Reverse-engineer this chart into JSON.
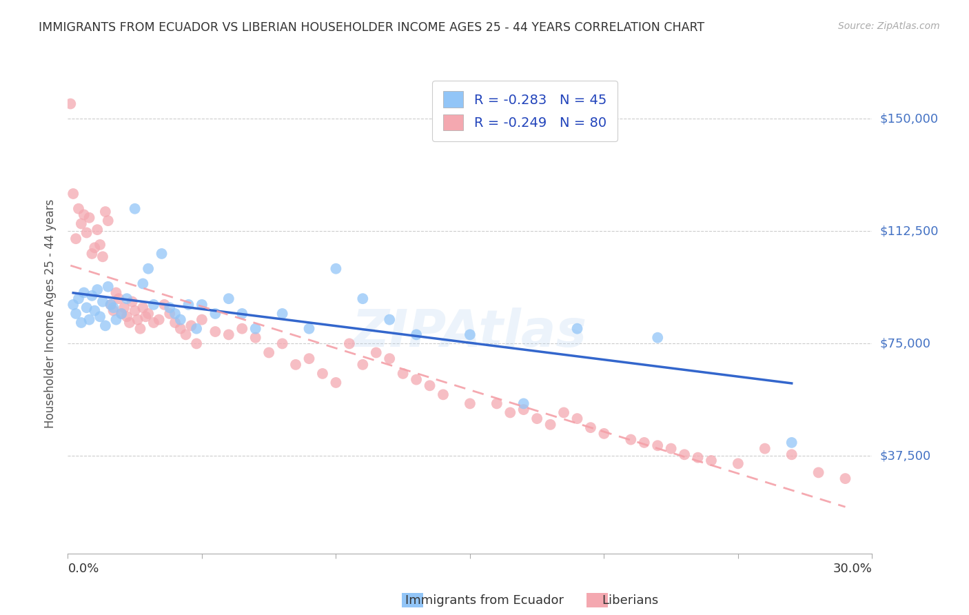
{
  "title": "IMMIGRANTS FROM ECUADOR VS LIBERIAN HOUSEHOLDER INCOME AGES 25 - 44 YEARS CORRELATION CHART",
  "source": "Source: ZipAtlas.com",
  "ylabel": "Householder Income Ages 25 - 44 years",
  "ytick_labels": [
    "$37,500",
    "$75,000",
    "$112,500",
    "$150,000"
  ],
  "ytick_values": [
    37500,
    75000,
    112500,
    150000
  ],
  "ymin": 5000,
  "ymax": 165000,
  "xmin": 0.0,
  "xmax": 0.3,
  "watermark": "ZIPAtlas",
  "legend_r_ecuador": "-0.283",
  "legend_n_ecuador": "45",
  "legend_r_liberian": "-0.249",
  "legend_n_liberian": "80",
  "ecuador_color": "#92c5f7",
  "liberian_color": "#f4a8b0",
  "ecuador_line_color": "#3366cc",
  "liberian_line_color": "#f4a8b0",
  "grid_color": "#cccccc",
  "title_color": "#333333",
  "yaxis_label_color": "#4472c4",
  "ecuador_scatter_x": [
    0.002,
    0.003,
    0.004,
    0.005,
    0.006,
    0.007,
    0.008,
    0.009,
    0.01,
    0.011,
    0.012,
    0.013,
    0.014,
    0.015,
    0.016,
    0.017,
    0.018,
    0.02,
    0.022,
    0.025,
    0.028,
    0.03,
    0.032,
    0.035,
    0.038,
    0.04,
    0.042,
    0.045,
    0.048,
    0.05,
    0.055,
    0.06,
    0.065,
    0.07,
    0.08,
    0.09,
    0.1,
    0.11,
    0.12,
    0.13,
    0.15,
    0.17,
    0.19,
    0.22,
    0.27
  ],
  "ecuador_scatter_y": [
    88000,
    85000,
    90000,
    82000,
    92000,
    87000,
    83000,
    91000,
    86000,
    93000,
    84000,
    89000,
    81000,
    94000,
    88000,
    87000,
    83000,
    85000,
    90000,
    120000,
    95000,
    100000,
    88000,
    105000,
    87000,
    85000,
    83000,
    88000,
    80000,
    88000,
    85000,
    90000,
    85000,
    80000,
    85000,
    80000,
    100000,
    90000,
    83000,
    78000,
    78000,
    55000,
    80000,
    77000,
    42000
  ],
  "liberian_scatter_x": [
    0.001,
    0.002,
    0.003,
    0.004,
    0.005,
    0.006,
    0.007,
    0.008,
    0.009,
    0.01,
    0.011,
    0.012,
    0.013,
    0.014,
    0.015,
    0.016,
    0.017,
    0.018,
    0.019,
    0.02,
    0.021,
    0.022,
    0.023,
    0.024,
    0.025,
    0.026,
    0.027,
    0.028,
    0.029,
    0.03,
    0.032,
    0.034,
    0.036,
    0.038,
    0.04,
    0.042,
    0.044,
    0.046,
    0.048,
    0.05,
    0.055,
    0.06,
    0.065,
    0.07,
    0.075,
    0.08,
    0.085,
    0.09,
    0.095,
    0.1,
    0.105,
    0.11,
    0.115,
    0.12,
    0.125,
    0.13,
    0.135,
    0.14,
    0.15,
    0.16,
    0.165,
    0.17,
    0.175,
    0.18,
    0.185,
    0.19,
    0.195,
    0.2,
    0.21,
    0.215,
    0.22,
    0.225,
    0.23,
    0.235,
    0.24,
    0.25,
    0.26,
    0.27,
    0.28,
    0.29
  ],
  "liberian_scatter_y": [
    155000,
    125000,
    110000,
    120000,
    115000,
    118000,
    112000,
    117000,
    105000,
    107000,
    113000,
    108000,
    104000,
    119000,
    116000,
    88000,
    86000,
    92000,
    90000,
    85000,
    87000,
    84000,
    82000,
    89000,
    86000,
    83000,
    80000,
    87000,
    84000,
    85000,
    82000,
    83000,
    88000,
    85000,
    82000,
    80000,
    78000,
    81000,
    75000,
    83000,
    79000,
    78000,
    80000,
    77000,
    72000,
    75000,
    68000,
    70000,
    65000,
    62000,
    75000,
    68000,
    72000,
    70000,
    65000,
    63000,
    61000,
    58000,
    55000,
    55000,
    52000,
    53000,
    50000,
    48000,
    52000,
    50000,
    47000,
    45000,
    43000,
    42000,
    41000,
    40000,
    38000,
    37000,
    36000,
    35000,
    40000,
    38000,
    32000,
    30000
  ]
}
